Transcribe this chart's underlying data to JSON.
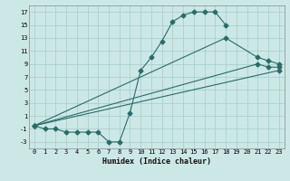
{
  "xlabel": "Humidex (Indice chaleur)",
  "bg_color": "#cce8e6",
  "line_color": "#2a6b68",
  "grid_color": "#aacfcd",
  "xlim": [
    -0.5,
    23.5
  ],
  "ylim": [
    -4,
    18
  ],
  "xticks": [
    0,
    1,
    2,
    3,
    4,
    5,
    6,
    7,
    8,
    9,
    10,
    11,
    12,
    13,
    14,
    15,
    16,
    17,
    18,
    19,
    20,
    21,
    22,
    23
  ],
  "yticks": [
    -3,
    -1,
    1,
    3,
    5,
    7,
    9,
    11,
    13,
    15,
    17
  ],
  "line1_x": [
    0,
    1,
    2,
    3,
    4,
    5,
    6,
    7,
    8,
    9,
    10,
    11,
    12,
    13,
    14,
    15,
    16,
    17,
    18
  ],
  "line1_y": [
    -0.5,
    -1,
    -1,
    -1.5,
    -1.5,
    -1.5,
    -1.5,
    -3,
    -3,
    1.5,
    8,
    10,
    12.5,
    15.5,
    16.5,
    17,
    17,
    17,
    15
  ],
  "line2_x": [
    0,
    18,
    21,
    22,
    23
  ],
  "line2_y": [
    -0.5,
    13,
    10,
    9.5,
    9
  ],
  "line3_x": [
    0,
    21,
    22,
    23
  ],
  "line3_y": [
    -0.5,
    9,
    8.5,
    8.5
  ],
  "line4_x": [
    0,
    23
  ],
  "line4_y": [
    -0.5,
    8
  ],
  "markersize": 2.5
}
